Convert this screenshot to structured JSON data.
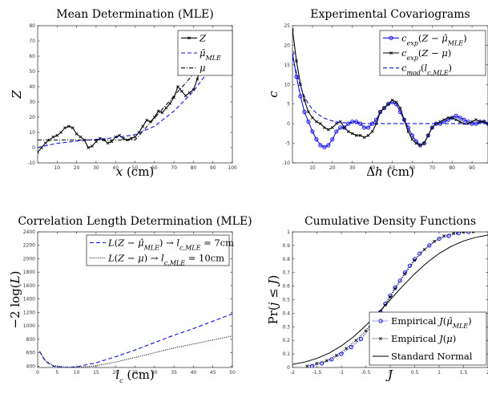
{
  "colors": {
    "blue": "#1010e0",
    "black": "#000000",
    "axis": "#262626"
  },
  "chart_data": [
    {
      "type": "line",
      "title": "Mean Determination (MLE)",
      "xlabel": "x (cm)",
      "ylabel": "Z",
      "xlim": [
        0,
        100
      ],
      "ylim": [
        -10,
        80
      ],
      "xticks": [
        10,
        20,
        30,
        40,
        50,
        60,
        70,
        80,
        90,
        100
      ],
      "yticks": [
        -10,
        0,
        10,
        20,
        30,
        40,
        50,
        60,
        70,
        80
      ],
      "legend_position": "top-right",
      "series": [
        {
          "name": "Z",
          "style": "solid-x",
          "color": "#000000",
          "x": [
            0,
            2,
            4,
            6,
            8,
            10,
            12,
            14,
            16,
            18,
            20,
            22,
            24,
            26,
            28,
            30,
            32,
            34,
            36,
            38,
            40,
            42,
            44,
            46,
            48,
            50,
            52,
            54,
            56,
            58,
            60,
            62,
            64,
            66,
            68,
            70,
            72,
            74,
            76,
            78,
            80,
            82,
            84,
            86,
            88,
            90,
            92,
            94,
            96,
            98,
            100
          ],
          "y": [
            -3,
            0,
            3,
            5,
            7,
            8,
            10,
            13,
            14,
            13,
            9,
            7,
            5,
            0,
            1,
            4,
            6,
            5,
            3,
            4,
            7,
            8,
            6,
            5,
            6,
            7,
            10,
            14,
            18,
            17,
            20,
            24,
            23,
            26,
            29,
            33,
            40,
            37,
            34,
            36,
            38,
            45,
            55,
            60,
            63,
            64,
            67,
            73,
            74,
            75,
            76
          ]
        },
        {
          "name": "μ̂_MLE",
          "style": "dashed",
          "color": "#1010e0",
          "x": [
            0,
            5,
            10,
            20,
            30,
            40,
            50,
            60,
            70,
            80,
            90,
            100
          ],
          "y": [
            0,
            1.5,
            2.8,
            4.3,
            5.4,
            6.6,
            8.5,
            14,
            24,
            37,
            54,
            72
          ]
        },
        {
          "name": "μ",
          "style": "dashdot",
          "color": "#000000",
          "x": [
            0,
            50,
            100
          ],
          "y": [
            5,
            5,
            77
          ]
        }
      ]
    },
    {
      "type": "line",
      "title": "Experimental Covariograms",
      "xlabel": "Δh (cm)",
      "ylabel": "c",
      "xlim": [
        0,
        98
      ],
      "ylim": [
        -10,
        25
      ],
      "xticks": [
        10,
        20,
        30,
        40,
        50,
        60,
        70,
        80,
        90
      ],
      "yticks": [
        -10,
        -5,
        0,
        5,
        10,
        15,
        20,
        25
      ],
      "legend_position": "top-right",
      "series": [
        {
          "name": "c_exp(Z − μ̂_MLE)",
          "style": "solid-o",
          "color": "#1010e0",
          "x": [
            0,
            2,
            4,
            6,
            8,
            10,
            12,
            14,
            16,
            18,
            20,
            22,
            24,
            26,
            28,
            30,
            32,
            34,
            36,
            38,
            40,
            42,
            44,
            46,
            48,
            50,
            52,
            54,
            56,
            58,
            60,
            62,
            64,
            66,
            68,
            70,
            72,
            74,
            76,
            78,
            80,
            82,
            84,
            86,
            88,
            90,
            92,
            94,
            96,
            98
          ],
          "y": [
            18,
            12,
            7,
            3,
            0.5,
            -2,
            -4,
            -5.5,
            -6,
            -5.5,
            -4,
            -2,
            -1,
            -1,
            0,
            0.5,
            0.5,
            0,
            -1,
            -1,
            0,
            1,
            3,
            4,
            5,
            5.5,
            5,
            3,
            1,
            -1,
            -3,
            -4.5,
            -5.5,
            -5,
            -3,
            -1,
            0,
            0,
            0.5,
            1,
            1.5,
            2,
            1.5,
            1,
            0.5,
            0,
            0,
            0.5,
            0.5,
            0
          ]
        },
        {
          "name": "c_exp(Z − μ)",
          "style": "solid-x",
          "color": "#000000",
          "x": [
            0,
            2,
            4,
            6,
            8,
            10,
            12,
            14,
            16,
            18,
            20,
            22,
            24,
            26,
            28,
            30,
            32,
            34,
            36,
            38,
            40,
            42,
            44,
            46,
            48,
            50,
            52,
            54,
            56,
            58,
            60,
            62,
            64,
            66,
            68,
            70,
            72,
            74,
            76,
            78,
            80,
            82,
            84,
            86,
            88,
            90,
            92,
            94,
            96,
            98
          ],
          "y": [
            24,
            16,
            10,
            6,
            3,
            1.5,
            0.5,
            0,
            -1,
            -1.5,
            -1,
            0,
            0.5,
            -1,
            -2,
            -2.5,
            -3,
            -3,
            -3.5,
            -3,
            -2,
            0,
            3,
            4,
            5,
            6,
            5.5,
            4,
            1,
            -2,
            -4,
            -5,
            -5.5,
            -5,
            -3,
            -1,
            0,
            0.5,
            1,
            1.5,
            1.5,
            1,
            0.5,
            0,
            0,
            0.5,
            1,
            0.5,
            0.5,
            0
          ]
        },
        {
          "name": "c_mod(l_c,MLE)",
          "style": "dashed",
          "color": "#1010e0",
          "x": [
            0,
            2,
            4,
            6,
            8,
            10,
            12,
            14,
            16,
            18,
            20,
            22,
            24,
            28,
            32,
            40,
            60,
            98
          ],
          "y": [
            17,
            13,
            9.5,
            7,
            5,
            3.7,
            2.7,
            2,
            1.4,
            1,
            0.7,
            0.5,
            0.3,
            0.15,
            0.05,
            0,
            0,
            0
          ]
        }
      ]
    },
    {
      "type": "line",
      "title": "Correlation Length Determination (MLE)",
      "xlabel": "l_c (cm)",
      "ylabel": "−2 log(L)",
      "xlim": [
        0,
        50
      ],
      "ylim": [
        380,
        2400
      ],
      "xticks": [
        0,
        5,
        10,
        15,
        20,
        25,
        30,
        35,
        40,
        45,
        50
      ],
      "yticks": [
        400,
        600,
        800,
        1000,
        1200,
        1400,
        1600,
        1800,
        2000,
        2200,
        2400
      ],
      "legend_position": "top-right",
      "series": [
        {
          "name": "L(Z − μ̂_MLE) → l_c,MLE = 7cm",
          "style": "dashed",
          "color": "#1010e0",
          "x": [
            0.5,
            2,
            4,
            7,
            10,
            15,
            20,
            25,
            30,
            35,
            40,
            45,
            50
          ],
          "y": [
            620,
            470,
            400,
            380,
            390,
            450,
            540,
            640,
            750,
            860,
            960,
            1070,
            1180
          ]
        },
        {
          "name": "L(Z − μ) → l_c,MLE = 10cm",
          "style": "dotted",
          "color": "#000000",
          "x": [
            0.5,
            2,
            4,
            7,
            10,
            15,
            20,
            25,
            30,
            35,
            40,
            45,
            50
          ],
          "y": [
            620,
            480,
            410,
            385,
            380,
            405,
            460,
            530,
            600,
            670,
            730,
            790,
            850
          ]
        }
      ]
    },
    {
      "type": "line",
      "title": "Cumulative Density Functions",
      "xlabel": "J",
      "ylabel": "Pr(j ≤ J)",
      "xlim": [
        -2,
        2
      ],
      "ylim": [
        0,
        1
      ],
      "xticks": [
        -2,
        -1.5,
        -1,
        -0.5,
        0,
        0.5,
        1,
        1.5,
        2
      ],
      "xticklabels": [
        "-2",
        "-1.5",
        "-1",
        "-0.5",
        "0",
        "0.5",
        "1",
        "1.5",
        "2"
      ],
      "yticks": [
        0,
        0.1,
        0.2,
        0.3,
        0.4,
        0.5,
        0.6,
        0.7,
        0.8,
        0.9,
        1
      ],
      "yticklabels": [
        "0",
        "0.1",
        "0.2",
        "0.3",
        "0.4",
        "0.5",
        "0.6",
        "0.7",
        "0.8",
        "0.9",
        "1"
      ],
      "legend_position": "bottom-right",
      "series": [
        {
          "name": "Empirical J(μ̂_MLE)",
          "style": "dotted-o",
          "color": "#1010e0",
          "x": [
            -1.6,
            -1.4,
            -1.2,
            -1.0,
            -0.8,
            -0.6,
            -0.4,
            -0.3,
            -0.2,
            -0.1,
            0,
            0.1,
            0.2,
            0.3,
            0.4,
            0.5,
            0.6,
            0.8,
            1.0,
            1.2,
            1.4,
            1.6
          ],
          "y": [
            0.01,
            0.03,
            0.06,
            0.1,
            0.15,
            0.21,
            0.3,
            0.35,
            0.41,
            0.47,
            0.53,
            0.59,
            0.64,
            0.7,
            0.75,
            0.8,
            0.84,
            0.9,
            0.95,
            0.97,
            0.99,
            1
          ]
        },
        {
          "name": "Empirical J(μ)",
          "style": "dotted-x",
          "color": "#000000",
          "x": [
            -1.7,
            -1.5,
            -1.3,
            -1.1,
            -0.9,
            -0.7,
            -0.5,
            -0.3,
            -0.1,
            0,
            0.1,
            0.3,
            0.5,
            0.7,
            0.9,
            1.1,
            1.3,
            1.5,
            1.7
          ],
          "y": [
            0.01,
            0.03,
            0.05,
            0.09,
            0.14,
            0.2,
            0.27,
            0.36,
            0.46,
            0.52,
            0.58,
            0.69,
            0.79,
            0.87,
            0.93,
            0.97,
            0.99,
            1,
            1
          ]
        },
        {
          "name": "Standard Normal",
          "style": "solid",
          "color": "#000000",
          "x": [
            -2,
            -1.75,
            -1.5,
            -1.25,
            -1,
            -0.75,
            -0.5,
            -0.25,
            0,
            0.25,
            0.5,
            0.75,
            1,
            1.25,
            1.5,
            1.75,
            2
          ],
          "y": [
            0.023,
            0.04,
            0.067,
            0.106,
            0.159,
            0.227,
            0.309,
            0.401,
            0.5,
            0.599,
            0.691,
            0.773,
            0.841,
            0.894,
            0.933,
            0.96,
            0.977
          ]
        }
      ]
    }
  ]
}
